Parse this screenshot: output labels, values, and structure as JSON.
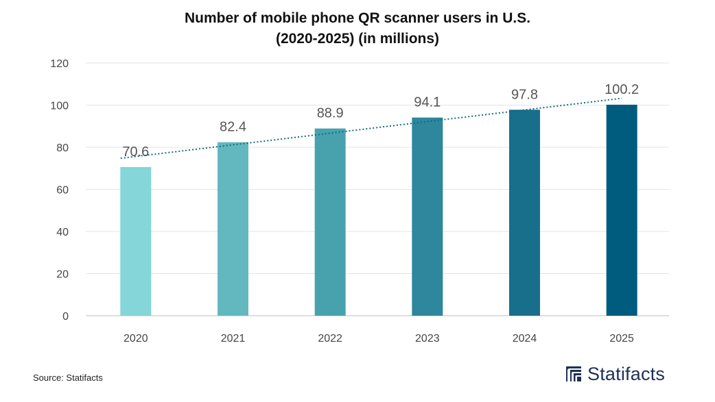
{
  "title_line1": "Number of mobile phone QR scanner users in U.S.",
  "title_line2": "(2020-2025) (in millions)",
  "source": "Source: Statifacts",
  "brand": "Statifacts",
  "chart_data": {
    "type": "bar",
    "categories": [
      "2020",
      "2021",
      "2022",
      "2023",
      "2024",
      "2025"
    ],
    "values": [
      70.6,
      82.4,
      88.9,
      94.1,
      97.8,
      100.2
    ],
    "value_labels": [
      "70.6",
      "82.4",
      "88.9",
      "94.1",
      "97.8",
      "100.2"
    ],
    "ylim": [
      0,
      120
    ],
    "yticks": [
      0,
      20,
      40,
      60,
      80,
      100,
      120
    ],
    "ytick_labels": [
      "0",
      "20",
      "40",
      "60",
      "80",
      "100",
      "120"
    ],
    "grid": true,
    "trendline": "linear",
    "bar_colors": [
      "#84d6d8",
      "#62b8be",
      "#48a2ad",
      "#2e879c",
      "#176f8c",
      "#005c7e"
    ],
    "trend_color": "#0f6a80",
    "xlabel": "",
    "ylabel": ""
  }
}
